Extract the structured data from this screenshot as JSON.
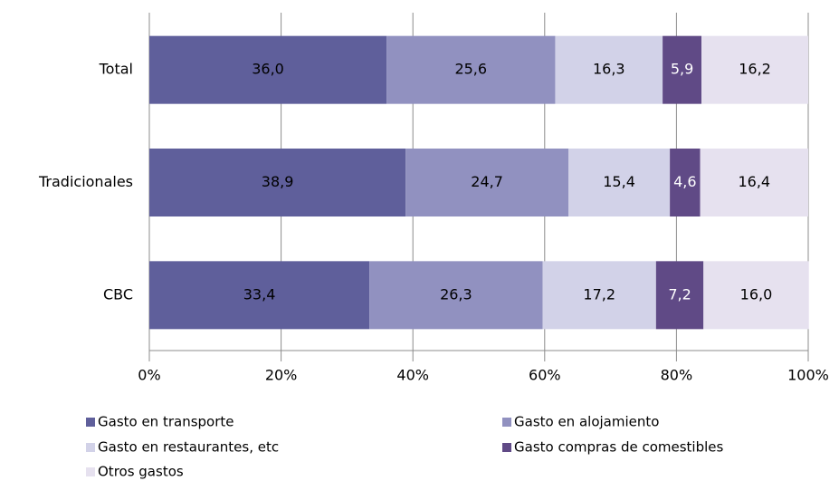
{
  "chart_data": {
    "type": "stacked-bar-horizontal",
    "categories": [
      "Total",
      "Tradicionales",
      "CBC"
    ],
    "series": [
      {
        "name": "Gasto en transporte",
        "color": "#5f5f9b",
        "label_color": "#000000",
        "values": [
          36.0,
          38.9,
          33.4
        ],
        "value_labels": [
          "36,0",
          "38,9",
          "33,4"
        ]
      },
      {
        "name": "Gasto en alojamiento",
        "color": "#9191c0",
        "label_color": "#000000",
        "values": [
          25.6,
          24.7,
          26.3
        ],
        "value_labels": [
          "25,6",
          "24,7",
          "26,3"
        ]
      },
      {
        "name": "Gasto en restaurantes, etc",
        "color": "#d2d2e8",
        "label_color": "#000000",
        "values": [
          16.3,
          15.4,
          17.2
        ],
        "value_labels": [
          "16,3",
          "15,4",
          "17,2"
        ]
      },
      {
        "name": "Gasto compras de comestibles",
        "color": "#604a86",
        "label_color": "#ffffff",
        "values": [
          5.9,
          4.6,
          7.2
        ],
        "value_labels": [
          "5,9",
          "4,6",
          "7,2"
        ]
      },
      {
        "name": "Otros gastos",
        "color": "#e6e1ef",
        "label_color": "#000000",
        "values": [
          16.2,
          16.4,
          16.0
        ],
        "value_labels": [
          "16,2",
          "16,4",
          "16,0"
        ]
      }
    ],
    "xlim": [
      0,
      100
    ],
    "xticks": [
      {
        "value": 0,
        "label": "0%"
      },
      {
        "value": 20,
        "label": "20%"
      },
      {
        "value": 40,
        "label": "40%"
      },
      {
        "value": 60,
        "label": "60%"
      },
      {
        "value": 80,
        "label": "80%"
      },
      {
        "value": 100,
        "label": "100%"
      }
    ],
    "grid": true
  }
}
